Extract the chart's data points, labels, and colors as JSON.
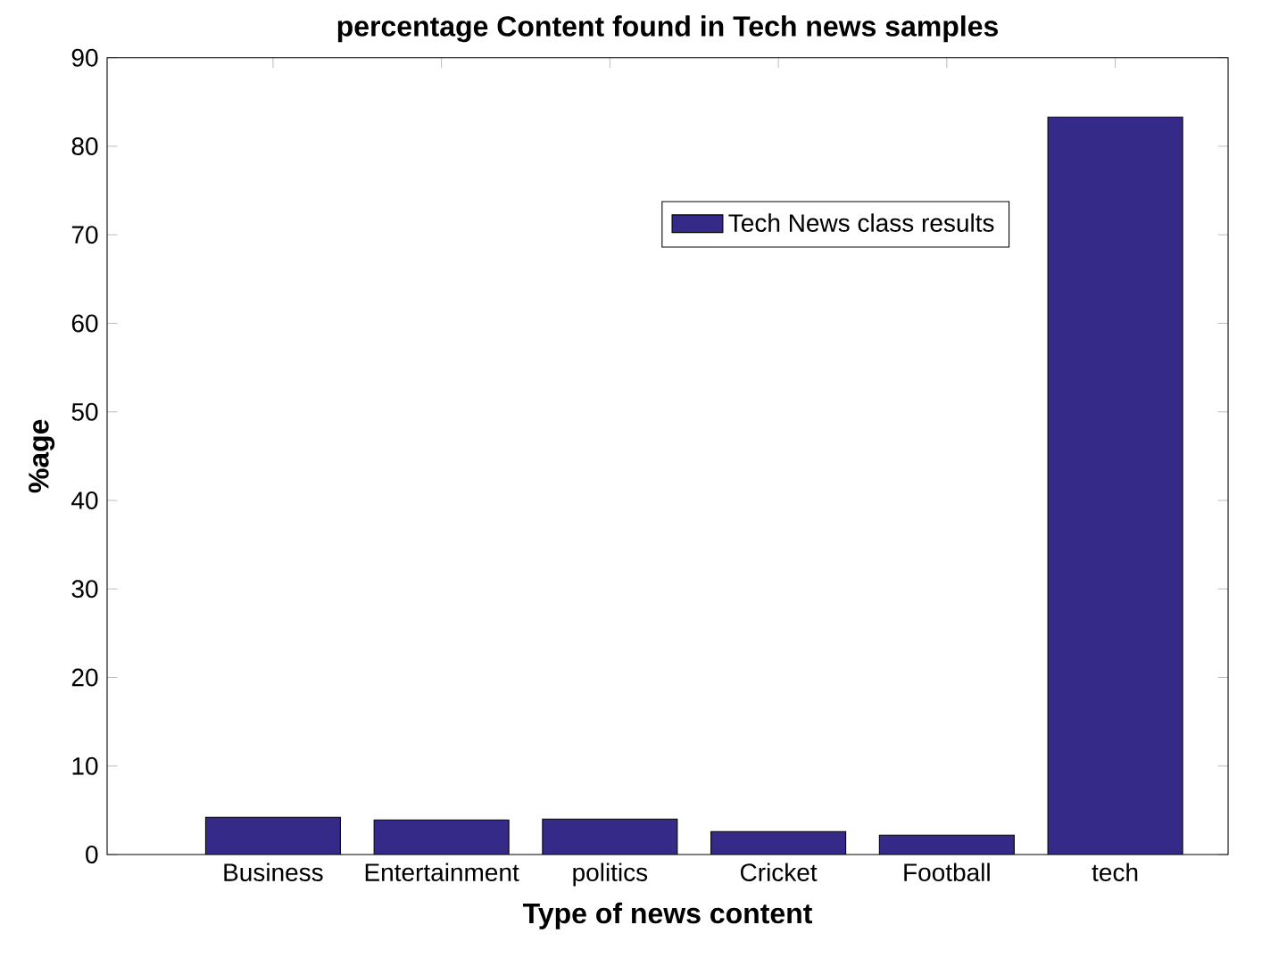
{
  "chart_data": {
    "type": "bar",
    "title": "percentage Content found in Tech news samples",
    "xlabel": "Type of news content",
    "ylabel": "%age",
    "categories": [
      "Business",
      "Entertainment",
      "politics",
      "Cricket",
      "Football",
      "tech"
    ],
    "series": [
      {
        "name": "Tech News class results",
        "color": "#352a87",
        "values": [
          4.2,
          3.9,
          4.0,
          2.6,
          2.2,
          83.3
        ]
      }
    ],
    "ylim": [
      0,
      90
    ],
    "yticks": [
      0,
      10,
      20,
      30,
      40,
      50,
      60,
      70,
      80,
      90
    ],
    "legend": "top right"
  }
}
